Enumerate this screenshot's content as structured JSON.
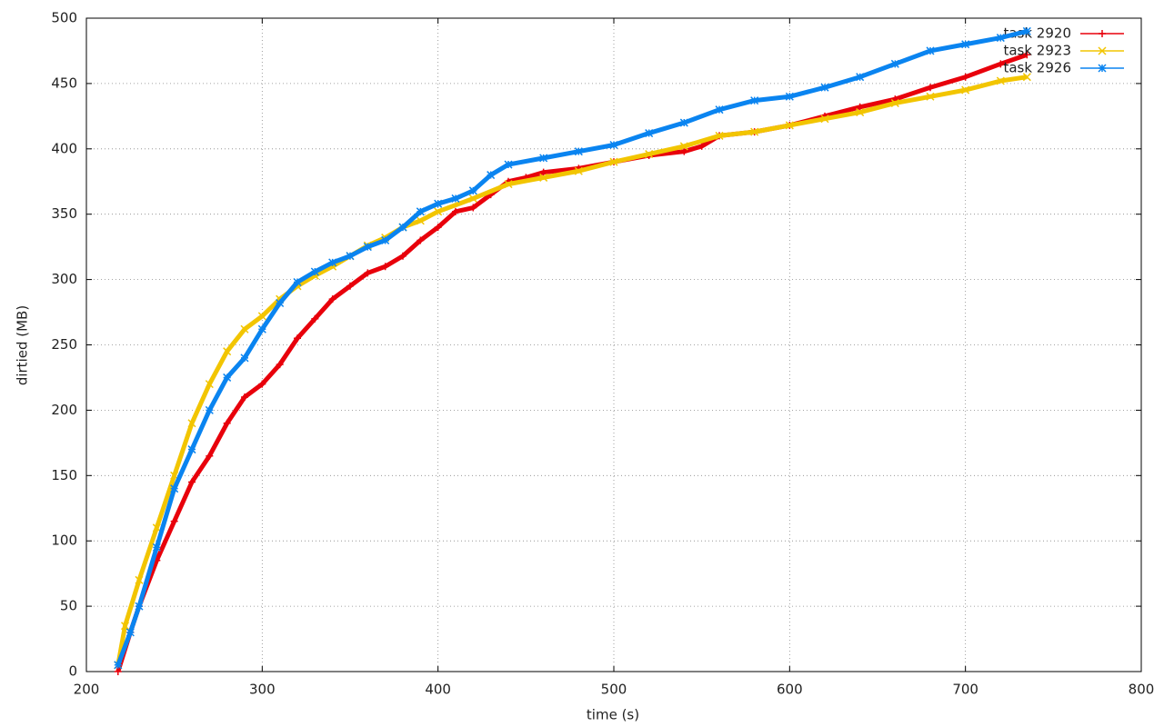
{
  "chart_data": {
    "type": "line",
    "xlabel": "time (s)",
    "ylabel": "dirtied (MB)",
    "xlim": [
      200,
      800
    ],
    "xticks": [
      200,
      300,
      400,
      500,
      600,
      700,
      800
    ],
    "ylim": [
      0,
      500
    ],
    "yticks": [
      0,
      50,
      100,
      150,
      200,
      250,
      300,
      350,
      400,
      450,
      500
    ],
    "grid": true,
    "legend": "top-right",
    "series": [
      {
        "name": "task 2920",
        "color": "#e8000b",
        "marker": "plus",
        "x": [
          218,
          225,
          230,
          240,
          250,
          260,
          270,
          280,
          290,
          300,
          310,
          320,
          330,
          340,
          350,
          360,
          370,
          380,
          390,
          400,
          410,
          420,
          430,
          440,
          450,
          460,
          480,
          500,
          520,
          540,
          550,
          560,
          580,
          600,
          620,
          640,
          660,
          680,
          700,
          720,
          735
        ],
        "values": [
          0,
          30,
          50,
          85,
          115,
          145,
          165,
          190,
          210,
          220,
          235,
          255,
          270,
          285,
          295,
          305,
          310,
          318,
          330,
          340,
          352,
          355,
          365,
          375,
          378,
          382,
          385,
          390,
          395,
          398,
          402,
          410,
          413,
          418,
          425,
          432,
          438,
          447,
          455,
          465,
          472
        ]
      },
      {
        "name": "task 2923",
        "color": "#f2c500",
        "marker": "cross",
        "x": [
          218,
          222,
          230,
          240,
          250,
          260,
          270,
          280,
          290,
          300,
          310,
          320,
          330,
          340,
          350,
          360,
          370,
          380,
          390,
          400,
          420,
          440,
          460,
          480,
          500,
          520,
          540,
          560,
          580,
          600,
          620,
          640,
          660,
          680,
          700,
          720,
          735
        ],
        "values": [
          5,
          35,
          70,
          110,
          150,
          190,
          220,
          245,
          262,
          272,
          285,
          295,
          303,
          310,
          318,
          326,
          332,
          340,
          345,
          352,
          362,
          373,
          378,
          383,
          390,
          396,
          402,
          410,
          413,
          418,
          423,
          428,
          435,
          440,
          445,
          452,
          455
        ]
      },
      {
        "name": "task 2926",
        "color": "#0a84f0",
        "marker": "star",
        "x": [
          218,
          225,
          230,
          240,
          250,
          260,
          270,
          280,
          290,
          300,
          310,
          320,
          330,
          340,
          350,
          360,
          370,
          380,
          390,
          400,
          410,
          420,
          430,
          440,
          460,
          480,
          500,
          520,
          540,
          560,
          580,
          600,
          620,
          640,
          660,
          680,
          700,
          720,
          735
        ],
        "values": [
          5,
          30,
          50,
          95,
          140,
          170,
          200,
          225,
          240,
          262,
          282,
          298,
          306,
          313,
          318,
          325,
          330,
          340,
          352,
          358,
          362,
          368,
          380,
          388,
          393,
          398,
          403,
          412,
          420,
          430,
          437,
          440,
          447,
          455,
          465,
          475,
          480,
          485,
          490
        ]
      }
    ]
  }
}
